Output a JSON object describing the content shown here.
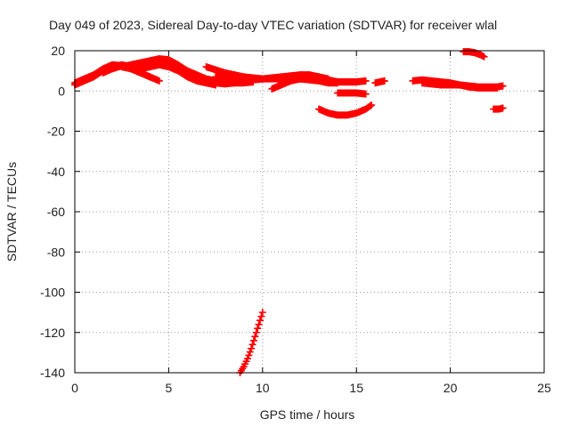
{
  "chart_data": {
    "type": "scatter",
    "title": "Day 049 of 2023, Sidereal Day-to-day VTEC variation (SDTVAR) for receiver wlal",
    "xlabel": "GPS time / hours",
    "ylabel": "SDTVAR / TECUs",
    "xlim": [
      0,
      25
    ],
    "ylim": [
      -140,
      20
    ],
    "x_ticks": [
      0,
      5,
      10,
      15,
      20,
      25
    ],
    "y_ticks": [
      20,
      0,
      -20,
      -40,
      -60,
      -80,
      -100,
      -120,
      -140
    ],
    "grid": true,
    "legend": "none",
    "series_color": "#ff0000",
    "series": [
      {
        "values": [
          [
            0.0,
            4
          ],
          [
            0.5,
            6
          ],
          [
            1.0,
            8
          ],
          [
            1.5,
            11
          ],
          [
            2.0,
            13
          ],
          [
            2.5,
            12.5
          ],
          [
            3.0,
            11
          ],
          [
            3.5,
            9
          ],
          [
            4.0,
            7
          ]
        ]
      },
      {
        "values": [
          [
            0.0,
            3
          ],
          [
            0.5,
            5
          ],
          [
            1.0,
            7
          ],
          [
            1.5,
            10
          ],
          [
            2.0,
            12
          ],
          [
            2.5,
            13
          ],
          [
            3.0,
            12
          ],
          [
            3.5,
            11.5
          ],
          [
            4.0,
            12
          ],
          [
            4.5,
            13
          ],
          [
            5.0,
            12
          ],
          [
            5.5,
            10
          ],
          [
            6.0,
            7
          ],
          [
            6.5,
            5
          ],
          [
            7.0,
            4
          ],
          [
            7.5,
            4
          ],
          [
            8.0,
            5
          ],
          [
            8.5,
            6
          ]
        ]
      },
      {
        "values": [
          [
            1.5,
            9
          ],
          [
            2.0,
            11
          ],
          [
            2.5,
            12.5
          ],
          [
            3.0,
            12
          ],
          [
            3.5,
            13
          ],
          [
            4.0,
            14
          ],
          [
            4.5,
            15
          ],
          [
            5.0,
            14
          ],
          [
            5.5,
            12
          ],
          [
            6.0,
            10
          ],
          [
            6.5,
            8
          ],
          [
            7.0,
            6
          ],
          [
            7.5,
            5
          ],
          [
            8.0,
            4
          ],
          [
            8.5,
            4
          ],
          [
            9.0,
            5
          ],
          [
            9.5,
            5.5
          ],
          [
            10.0,
            6
          ]
        ]
      },
      {
        "values": [
          [
            2.5,
            12
          ],
          [
            3.0,
            13
          ],
          [
            3.5,
            14
          ],
          [
            4.0,
            15
          ],
          [
            4.5,
            16
          ],
          [
            5.0,
            15.5
          ],
          [
            5.5,
            13
          ],
          [
            6.0,
            10
          ],
          [
            6.5,
            7
          ],
          [
            7.0,
            5
          ],
          [
            7.5,
            4
          ],
          [
            8.0,
            3.5
          ],
          [
            8.5,
            4
          ],
          [
            9.0,
            4
          ],
          [
            9.5,
            4.5
          ]
        ]
      },
      {
        "values": [
          [
            3.5,
            11
          ],
          [
            4.0,
            12
          ],
          [
            4.5,
            13.5
          ],
          [
            5.0,
            14
          ],
          [
            5.5,
            12
          ],
          [
            6.0,
            9
          ],
          [
            6.5,
            6
          ],
          [
            7.0,
            4
          ],
          [
            7.5,
            3
          ]
        ]
      },
      {
        "values": [
          [
            2.5,
            12
          ],
          [
            3.0,
            11
          ],
          [
            3.5,
            9
          ],
          [
            4.0,
            7
          ],
          [
            4.5,
            5
          ]
        ]
      },
      {
        "values": [
          [
            7.0,
            12
          ],
          [
            7.5,
            10.5
          ],
          [
            8.0,
            9
          ],
          [
            8.5,
            8
          ],
          [
            9.0,
            7
          ],
          [
            9.5,
            6.5
          ],
          [
            10.0,
            6
          ],
          [
            10.5,
            6.5
          ],
          [
            11.0,
            7
          ],
          [
            11.5,
            7.5
          ],
          [
            12.0,
            8
          ],
          [
            12.5,
            8
          ],
          [
            13.0,
            7
          ],
          [
            13.5,
            5.5
          ],
          [
            14.0,
            4.5
          ],
          [
            14.5,
            4.5
          ],
          [
            15.0,
            4.5
          ],
          [
            15.5,
            5
          ]
        ]
      },
      {
        "values": [
          [
            7.5,
            7
          ],
          [
            8.0,
            6.5
          ],
          [
            8.5,
            6
          ],
          [
            9.0,
            6
          ],
          [
            9.5,
            6
          ],
          [
            10.0,
            6
          ],
          [
            10.5,
            6
          ],
          [
            11.0,
            6
          ],
          [
            11.5,
            6
          ],
          [
            12.0,
            6
          ],
          [
            12.5,
            6
          ],
          [
            13.0,
            5.5
          ],
          [
            13.5,
            5
          ],
          [
            14.0,
            4.5
          ],
          [
            14.5,
            4.5
          ],
          [
            15.0,
            4.5
          ]
        ]
      },
      {
        "values": [
          [
            10.5,
            1
          ],
          [
            11.0,
            3
          ],
          [
            11.5,
            5
          ],
          [
            12.0,
            6
          ],
          [
            12.5,
            5.5
          ],
          [
            13.0,
            5
          ],
          [
            13.5,
            4
          ],
          [
            14.0,
            4
          ]
        ]
      },
      {
        "values": [
          [
            11.0,
            4
          ],
          [
            11.5,
            5.5
          ],
          [
            12.0,
            7
          ],
          [
            12.5,
            7.5
          ],
          [
            13.0,
            7
          ],
          [
            13.5,
            6
          ]
        ]
      },
      {
        "values": [
          [
            8.8,
            -140
          ],
          [
            9.0,
            -137
          ],
          [
            9.2,
            -133
          ],
          [
            9.4,
            -128
          ],
          [
            9.6,
            -122
          ],
          [
            9.8,
            -116
          ],
          [
            10.0,
            -110
          ]
        ]
      },
      {
        "values": [
          [
            13.0,
            -9
          ],
          [
            13.5,
            -11
          ],
          [
            14.0,
            -12
          ],
          [
            14.5,
            -12
          ],
          [
            15.0,
            -11
          ],
          [
            15.5,
            -9
          ],
          [
            15.8,
            -7
          ]
        ]
      },
      {
        "values": [
          [
            14.0,
            -1
          ],
          [
            14.5,
            -1
          ],
          [
            15.0,
            -1
          ],
          [
            15.5,
            -1.5
          ]
        ]
      },
      {
        "values": [
          [
            16.0,
            4
          ],
          [
            16.5,
            5
          ]
        ]
      },
      {
        "values": [
          [
            18.0,
            5
          ],
          [
            18.5,
            5.5
          ],
          [
            19.0,
            5
          ],
          [
            19.5,
            4.5
          ],
          [
            20.0,
            4
          ],
          [
            20.5,
            3
          ],
          [
            21.0,
            2.5
          ],
          [
            21.5,
            2
          ],
          [
            22.0,
            2
          ],
          [
            22.5,
            2
          ],
          [
            22.8,
            2.5
          ]
        ]
      },
      {
        "values": [
          [
            18.5,
            4
          ],
          [
            19.0,
            3.5
          ],
          [
            19.5,
            3
          ],
          [
            20.0,
            3
          ],
          [
            20.5,
            3
          ],
          [
            21.0,
            2
          ],
          [
            21.5,
            1.5
          ],
          [
            22.0,
            1.5
          ],
          [
            22.5,
            1.5
          ]
        ]
      },
      {
        "values": [
          [
            20.7,
            19.5
          ],
          [
            21.0,
            19.5
          ],
          [
            21.3,
            19
          ],
          [
            21.6,
            18
          ],
          [
            21.8,
            17
          ]
        ]
      },
      {
        "values": [
          [
            22.3,
            -9
          ],
          [
            22.6,
            -9
          ],
          [
            22.8,
            -8.5
          ]
        ]
      }
    ]
  }
}
